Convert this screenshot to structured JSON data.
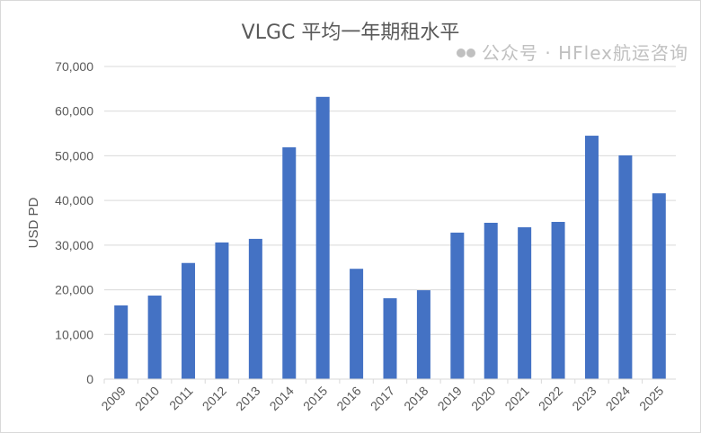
{
  "chart_data": {
    "type": "bar",
    "title": "VLGC 平均一年期租水平",
    "xlabel": "",
    "ylabel": "USD PD",
    "categories": [
      "2009",
      "2010",
      "2011",
      "2012",
      "2013",
      "2014",
      "2015",
      "2016",
      "2017",
      "2018",
      "2019",
      "2020",
      "2021",
      "2022",
      "2023",
      "2024",
      "2025"
    ],
    "values": [
      16500,
      18700,
      26000,
      30600,
      31400,
      51900,
      63200,
      24700,
      18100,
      19900,
      32800,
      35000,
      34000,
      35200,
      54500,
      50100,
      41600
    ],
    "ylim": [
      0,
      70000
    ],
    "yticks": [
      0,
      10000,
      20000,
      30000,
      40000,
      50000,
      60000,
      70000
    ],
    "ytick_labels": [
      "0",
      "10,000",
      "20,000",
      "30,000",
      "40,000",
      "50,000",
      "60,000",
      "70,000"
    ],
    "grid": true,
    "bar_color": "#4472C4",
    "legend": "none"
  },
  "watermark": "公众号 · HFlex航运咨询"
}
